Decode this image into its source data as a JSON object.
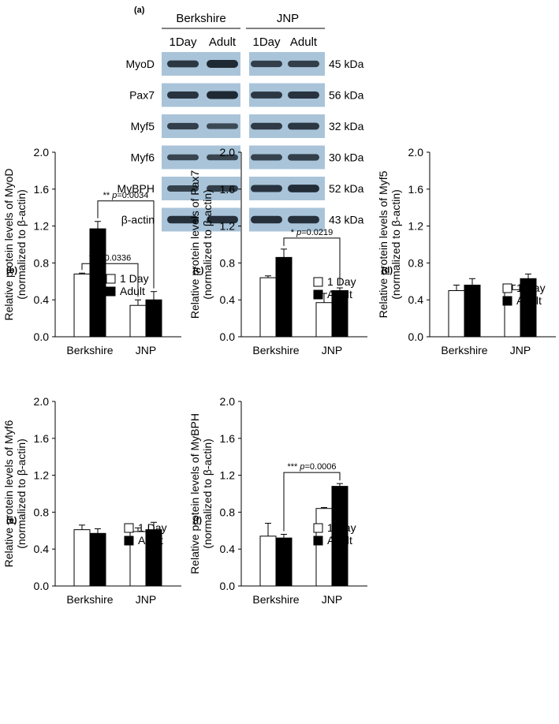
{
  "blot": {
    "panel_label": "(a)",
    "groups": [
      "Berkshire",
      "JNP"
    ],
    "lanes": [
      "1Day",
      "Adult",
      "1Day",
      "Adult"
    ],
    "rows": [
      {
        "protein": "MyoD",
        "size": "45 kDa",
        "intensity": [
          0.8,
          1.0,
          0.7,
          0.7
        ]
      },
      {
        "protein": "Pax7",
        "size": "56 kDa",
        "intensity": [
          0.85,
          1.0,
          0.8,
          0.85
        ]
      },
      {
        "protein": "Myf5",
        "size": "32 kDa",
        "intensity": [
          0.7,
          0.55,
          0.75,
          0.8
        ]
      },
      {
        "protein": "Myf6",
        "size": "30 kDa",
        "intensity": [
          0.6,
          0.6,
          0.65,
          0.7
        ]
      },
      {
        "protein": "MyBPH",
        "size": "52 kDa",
        "intensity": [
          0.65,
          0.7,
          0.85,
          0.95
        ]
      },
      {
        "protein": "β-actin",
        "size": "43 kDa",
        "intensity": [
          0.9,
          0.9,
          0.9,
          0.9
        ]
      }
    ],
    "colors": {
      "background": "#a9c4d9",
      "band": "#1f2933"
    }
  },
  "chart_data": [
    {
      "panel_label": "(b)",
      "type": "bar",
      "ylabel_line1": "Relative protein levels of MyoD",
      "ylabel_line2": "(normalized to β-actin)",
      "ylim": [
        0,
        2.0
      ],
      "yticks": [
        "0.0",
        "0.4",
        "0.8",
        "1.2",
        "1.6",
        "2.0"
      ],
      "categories": [
        "Berkshire",
        "JNP"
      ],
      "series": [
        {
          "name": "1 Day",
          "values": [
            0.68,
            0.34
          ],
          "errors": [
            0.01,
            0.06
          ],
          "color": "#ffffff"
        },
        {
          "name": "Adult",
          "values": [
            1.17,
            0.4
          ],
          "errors": [
            0.08,
            0.09
          ],
          "color": "#000000"
        }
      ],
      "annotations": [
        {
          "stars": "**",
          "p": "p=0.0034",
          "from": [
            0,
            1
          ],
          "to": [
            1,
            1
          ]
        },
        {
          "stars": "*",
          "p": "p=0.0336",
          "from": [
            0,
            0
          ],
          "to": [
            1,
            0
          ]
        }
      ]
    },
    {
      "panel_label": "(c)",
      "type": "bar",
      "ylabel_line1": "Relative protein levels of Pax7",
      "ylabel_line2": "(normalized to β-actin)",
      "ylim": [
        0,
        2.0
      ],
      "yticks": [
        "0.0",
        "0.4",
        "0.8",
        "1.2",
        "1.6",
        "2.0"
      ],
      "categories": [
        "Berkshire",
        "JNP"
      ],
      "series": [
        {
          "name": "1 Day",
          "values": [
            0.64,
            0.37
          ],
          "errors": [
            0.02,
            0.1
          ],
          "color": "#ffffff"
        },
        {
          "name": "Adult",
          "values": [
            0.86,
            0.5
          ],
          "errors": [
            0.09,
            0.03
          ],
          "color": "#000000"
        }
      ],
      "annotations": [
        {
          "stars": "*",
          "p": "p=0.0219",
          "from": [
            0,
            1
          ],
          "to": [
            1,
            1
          ]
        }
      ]
    },
    {
      "panel_label": "(d)",
      "type": "bar",
      "ylabel_line1": "Relative protein levels of Myf5",
      "ylabel_line2": "(normalized to β-actin)",
      "ylim": [
        0,
        2.0
      ],
      "yticks": [
        "0.0",
        "0.4",
        "0.8",
        "1.2",
        "1.6",
        "2.0"
      ],
      "categories": [
        "Berkshire",
        "JNP"
      ],
      "series": [
        {
          "name": "1 Day",
          "values": [
            0.5,
            0.51
          ],
          "errors": [
            0.06,
            0.05
          ],
          "color": "#ffffff"
        },
        {
          "name": "Adult",
          "values": [
            0.56,
            0.63
          ],
          "errors": [
            0.07,
            0.05
          ],
          "color": "#000000"
        }
      ],
      "annotations": []
    },
    {
      "panel_label": "(e)",
      "type": "bar",
      "ylabel_line1": "Relative protein levels of Myf6",
      "ylabel_line2": "(normalized to β-actin)",
      "ylim": [
        0,
        2.0
      ],
      "yticks": [
        "0.0",
        "0.4",
        "0.8",
        "1.2",
        "1.6",
        "2.0"
      ],
      "categories": [
        "Berkshire",
        "JNP"
      ],
      "series": [
        {
          "name": "1 Day",
          "values": [
            0.61,
            0.59
          ],
          "errors": [
            0.05,
            0.04
          ],
          "color": "#ffffff"
        },
        {
          "name": "Adult",
          "values": [
            0.57,
            0.61
          ],
          "errors": [
            0.05,
            0.08
          ],
          "color": "#000000"
        }
      ],
      "annotations": []
    },
    {
      "panel_label": "(f)",
      "type": "bar",
      "ylabel_line1": "Relative protein levels of MyBPH",
      "ylabel_line2": "(normalized to β-actin)",
      "ylim": [
        0,
        2.0
      ],
      "yticks": [
        "0.0",
        "0.4",
        "0.8",
        "1.2",
        "1.6",
        "2.0"
      ],
      "categories": [
        "Berkshire",
        "JNP"
      ],
      "series": [
        {
          "name": "1 Day",
          "values": [
            0.54,
            0.84
          ],
          "errors": [
            0.14,
            0.01
          ],
          "color": "#ffffff"
        },
        {
          "name": "Adult",
          "values": [
            0.52,
            1.08
          ],
          "errors": [
            0.04,
            0.03
          ],
          "color": "#000000"
        }
      ],
      "annotations": [
        {
          "stars": "***",
          "p": "p=0.0006",
          "from": [
            0,
            1
          ],
          "to": [
            1,
            1
          ]
        }
      ]
    }
  ]
}
